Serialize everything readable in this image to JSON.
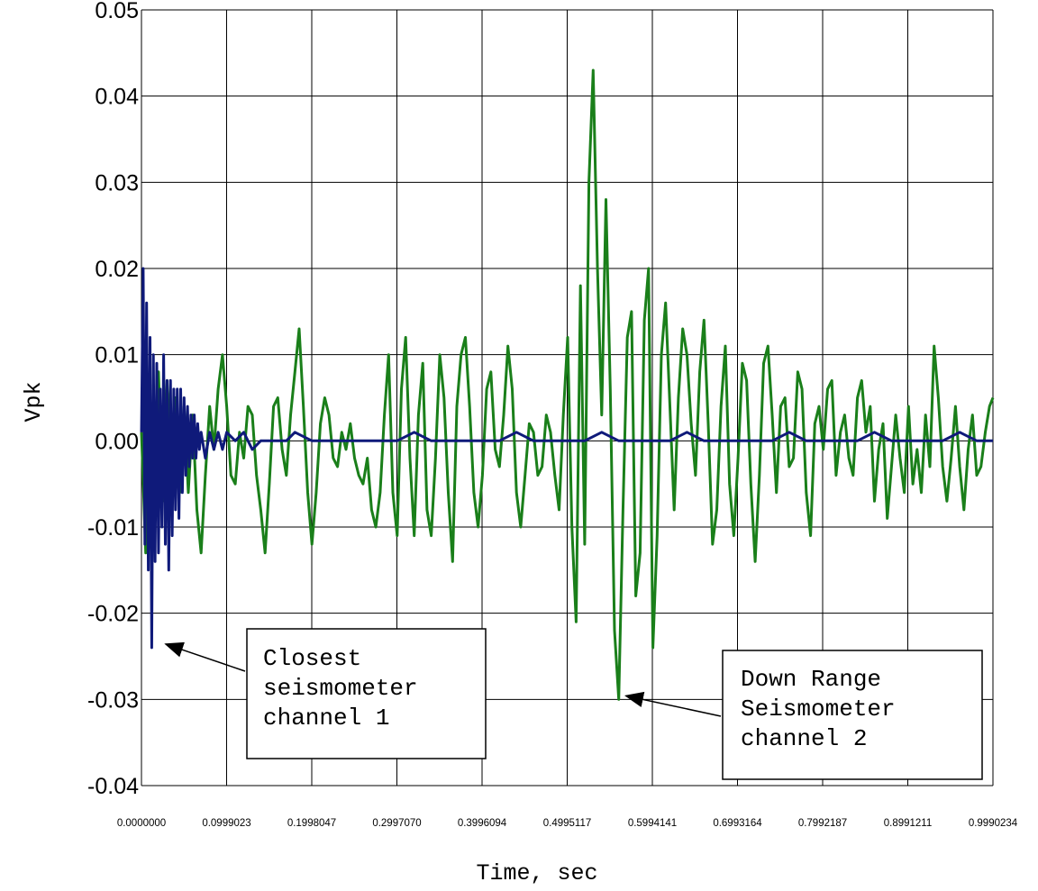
{
  "chart_data": {
    "type": "line",
    "title": "",
    "xlabel": "Time, sec",
    "ylabel": "Vpk",
    "xlim": [
      0.0,
      0.9990234
    ],
    "ylim": [
      -0.04,
      0.05
    ],
    "grid": true,
    "x_tick_labels": [
      "0.0000000",
      "0.0999023",
      "0.1998047",
      "0.2997070",
      "0.3996094",
      "0.4995117",
      "0.5994141",
      "0.6993164",
      "0.7992187",
      "0.8991211",
      "0.9990234"
    ],
    "y_tick_labels": [
      "0.05",
      "0.04",
      "0.03",
      "0.02",
      "0.01",
      "0.00",
      "-0.01",
      "-0.02",
      "-0.03",
      "-0.04"
    ],
    "y_tick_values": [
      0.05,
      0.04,
      0.03,
      0.02,
      0.01,
      0.0,
      -0.01,
      -0.02,
      -0.03,
      -0.04
    ],
    "series": [
      {
        "color": "#1a7f1a",
        "points": [
          [
            0.0,
            0.001
          ],
          [
            0.005,
            -0.013
          ],
          [
            0.01,
            0.004
          ],
          [
            0.015,
            -0.012
          ],
          [
            0.02,
            0.008
          ],
          [
            0.025,
            -0.007
          ],
          [
            0.03,
            0.007
          ],
          [
            0.035,
            -0.005
          ],
          [
            0.04,
            0.005
          ],
          [
            0.045,
            -0.006
          ],
          [
            0.05,
            0.004
          ],
          [
            0.055,
            -0.006
          ],
          [
            0.06,
            0.003
          ],
          [
            0.065,
            -0.008
          ],
          [
            0.07,
            -0.013
          ],
          [
            0.075,
            -0.004
          ],
          [
            0.08,
            0.004
          ],
          [
            0.085,
            -0.001
          ],
          [
            0.09,
            0.006
          ],
          [
            0.095,
            0.01
          ],
          [
            0.1,
            0.004
          ],
          [
            0.105,
            -0.004
          ],
          [
            0.11,
            -0.005
          ],
          [
            0.115,
            0.001
          ],
          [
            0.12,
            -0.002
          ],
          [
            0.125,
            0.004
          ],
          [
            0.13,
            0.003
          ],
          [
            0.135,
            -0.004
          ],
          [
            0.14,
            -0.008
          ],
          [
            0.145,
            -0.013
          ],
          [
            0.15,
            -0.005
          ],
          [
            0.155,
            0.004
          ],
          [
            0.16,
            0.005
          ],
          [
            0.165,
            -0.001
          ],
          [
            0.17,
            -0.004
          ],
          [
            0.175,
            0.003
          ],
          [
            0.18,
            0.008
          ],
          [
            0.185,
            0.013
          ],
          [
            0.19,
            0.004
          ],
          [
            0.195,
            -0.006
          ],
          [
            0.2,
            -0.012
          ],
          [
            0.205,
            -0.006
          ],
          [
            0.21,
            0.002
          ],
          [
            0.215,
            0.005
          ],
          [
            0.22,
            0.003
          ],
          [
            0.225,
            -0.002
          ],
          [
            0.23,
            -0.003
          ],
          [
            0.235,
            0.001
          ],
          [
            0.24,
            -0.001
          ],
          [
            0.245,
            0.002
          ],
          [
            0.25,
            -0.002
          ],
          [
            0.255,
            -0.004
          ],
          [
            0.26,
            -0.005
          ],
          [
            0.265,
            -0.002
          ],
          [
            0.27,
            -0.008
          ],
          [
            0.275,
            -0.01
          ],
          [
            0.28,
            -0.006
          ],
          [
            0.285,
            0.003
          ],
          [
            0.29,
            0.01
          ],
          [
            0.295,
            -0.006
          ],
          [
            0.3,
            -0.011
          ],
          [
            0.305,
            0.006
          ],
          [
            0.31,
            0.012
          ],
          [
            0.315,
            -0.002
          ],
          [
            0.32,
            -0.011
          ],
          [
            0.325,
            0.003
          ],
          [
            0.33,
            0.009
          ],
          [
            0.335,
            -0.008
          ],
          [
            0.34,
            -0.011
          ],
          [
            0.345,
            -0.002
          ],
          [
            0.35,
            0.01
          ],
          [
            0.355,
            0.005
          ],
          [
            0.36,
            -0.006
          ],
          [
            0.365,
            -0.014
          ],
          [
            0.37,
            0.004
          ],
          [
            0.375,
            0.01
          ],
          [
            0.38,
            0.012
          ],
          [
            0.385,
            0.004
          ],
          [
            0.39,
            -0.006
          ],
          [
            0.395,
            -0.01
          ],
          [
            0.4,
            -0.004
          ],
          [
            0.405,
            0.006
          ],
          [
            0.41,
            0.008
          ],
          [
            0.415,
            -0.001
          ],
          [
            0.42,
            -0.003
          ],
          [
            0.425,
            0.003
          ],
          [
            0.43,
            0.011
          ],
          [
            0.435,
            0.006
          ],
          [
            0.44,
            -0.006
          ],
          [
            0.445,
            -0.01
          ],
          [
            0.45,
            -0.004
          ],
          [
            0.455,
            0.002
          ],
          [
            0.46,
            0.001
          ],
          [
            0.465,
            -0.004
          ],
          [
            0.47,
            -0.003
          ],
          [
            0.475,
            0.003
          ],
          [
            0.48,
            0.001
          ],
          [
            0.485,
            -0.004
          ],
          [
            0.49,
            -0.008
          ],
          [
            0.495,
            0.003
          ],
          [
            0.5,
            0.012
          ],
          [
            0.505,
            -0.01
          ],
          [
            0.51,
            -0.021
          ],
          [
            0.515,
            0.018
          ],
          [
            0.52,
            -0.012
          ],
          [
            0.525,
            0.03
          ],
          [
            0.53,
            0.043
          ],
          [
            0.535,
            0.02
          ],
          [
            0.54,
            0.003
          ],
          [
            0.545,
            0.028
          ],
          [
            0.55,
            0.006
          ],
          [
            0.555,
            -0.022
          ],
          [
            0.56,
            -0.03
          ],
          [
            0.565,
            -0.008
          ],
          [
            0.57,
            0.012
          ],
          [
            0.575,
            0.015
          ],
          [
            0.58,
            -0.018
          ],
          [
            0.585,
            -0.013
          ],
          [
            0.59,
            0.014
          ],
          [
            0.595,
            0.02
          ],
          [
            0.6,
            -0.024
          ],
          [
            0.605,
            -0.011
          ],
          [
            0.61,
            0.01
          ],
          [
            0.615,
            0.016
          ],
          [
            0.62,
            0.004
          ],
          [
            0.625,
            -0.008
          ],
          [
            0.63,
            0.005
          ],
          [
            0.635,
            0.013
          ],
          [
            0.64,
            0.01
          ],
          [
            0.645,
            0.002
          ],
          [
            0.65,
            -0.004
          ],
          [
            0.655,
            0.008
          ],
          [
            0.66,
            0.014
          ],
          [
            0.665,
            0.002
          ],
          [
            0.67,
            -0.012
          ],
          [
            0.675,
            -0.008
          ],
          [
            0.68,
            0.004
          ],
          [
            0.685,
            0.011
          ],
          [
            0.69,
            -0.005
          ],
          [
            0.695,
            -0.011
          ],
          [
            0.7,
            -0.002
          ],
          [
            0.705,
            0.009
          ],
          [
            0.71,
            0.007
          ],
          [
            0.715,
            -0.005
          ],
          [
            0.72,
            -0.014
          ],
          [
            0.725,
            -0.004
          ],
          [
            0.73,
            0.009
          ],
          [
            0.735,
            0.011
          ],
          [
            0.74,
            0.003
          ],
          [
            0.745,
            -0.006
          ],
          [
            0.75,
            0.004
          ],
          [
            0.755,
            0.005
          ],
          [
            0.76,
            -0.003
          ],
          [
            0.765,
            -0.002
          ],
          [
            0.77,
            0.008
          ],
          [
            0.775,
            0.006
          ],
          [
            0.78,
            -0.006
          ],
          [
            0.785,
            -0.011
          ],
          [
            0.79,
            0.002
          ],
          [
            0.795,
            0.004
          ],
          [
            0.8,
            -0.001
          ],
          [
            0.805,
            0.006
          ],
          [
            0.81,
            0.007
          ],
          [
            0.815,
            -0.004
          ],
          [
            0.82,
            0.001
          ],
          [
            0.825,
            0.003
          ],
          [
            0.83,
            -0.002
          ],
          [
            0.835,
            -0.004
          ],
          [
            0.84,
            0.005
          ],
          [
            0.845,
            0.007
          ],
          [
            0.85,
            0.001
          ],
          [
            0.855,
            0.004
          ],
          [
            0.86,
            -0.007
          ],
          [
            0.865,
            -0.001
          ],
          [
            0.87,
            0.002
          ],
          [
            0.875,
            -0.009
          ],
          [
            0.88,
            -0.003
          ],
          [
            0.885,
            0.003
          ],
          [
            0.89,
            -0.002
          ],
          [
            0.895,
            -0.006
          ],
          [
            0.9,
            0.004
          ],
          [
            0.905,
            -0.005
          ],
          [
            0.91,
            -0.001
          ],
          [
            0.915,
            -0.006
          ],
          [
            0.92,
            0.003
          ],
          [
            0.925,
            -0.003
          ],
          [
            0.93,
            0.011
          ],
          [
            0.935,
            0.005
          ],
          [
            0.94,
            -0.003
          ],
          [
            0.945,
            -0.007
          ],
          [
            0.95,
            -0.002
          ],
          [
            0.955,
            0.004
          ],
          [
            0.96,
            -0.003
          ],
          [
            0.965,
            -0.008
          ],
          [
            0.97,
            -0.001
          ],
          [
            0.975,
            0.003
          ],
          [
            0.98,
            -0.004
          ],
          [
            0.985,
            -0.003
          ],
          [
            0.99,
            0.001
          ],
          [
            0.995,
            0.004
          ],
          [
            0.999,
            0.005
          ]
        ]
      },
      {
        "color": "#0f1a7a",
        "points": [
          [
            0.0,
            0.001
          ],
          [
            0.002,
            0.02
          ],
          [
            0.004,
            -0.012
          ],
          [
            0.006,
            0.016
          ],
          [
            0.008,
            -0.015
          ],
          [
            0.01,
            0.012
          ],
          [
            0.012,
            -0.024
          ],
          [
            0.014,
            0.01
          ],
          [
            0.016,
            -0.014
          ],
          [
            0.018,
            0.009
          ],
          [
            0.02,
            -0.013
          ],
          [
            0.022,
            0.006
          ],
          [
            0.024,
            -0.01
          ],
          [
            0.026,
            0.01
          ],
          [
            0.028,
            -0.012
          ],
          [
            0.03,
            0.007
          ],
          [
            0.032,
            -0.015
          ],
          [
            0.034,
            0.007
          ],
          [
            0.036,
            -0.011
          ],
          [
            0.038,
            0.006
          ],
          [
            0.04,
            -0.008
          ],
          [
            0.042,
            0.006
          ],
          [
            0.044,
            -0.009
          ],
          [
            0.046,
            0.006
          ],
          [
            0.048,
            -0.006
          ],
          [
            0.05,
            0.005
          ],
          [
            0.052,
            -0.004
          ],
          [
            0.054,
            0.004
          ],
          [
            0.056,
            -0.003
          ],
          [
            0.058,
            0.003
          ],
          [
            0.06,
            -0.002
          ],
          [
            0.062,
            0.003
          ],
          [
            0.064,
            -0.002
          ],
          [
            0.066,
            0.002
          ],
          [
            0.068,
            -0.001
          ],
          [
            0.07,
            0.001
          ],
          [
            0.075,
            -0.002
          ],
          [
            0.08,
            0.001
          ],
          [
            0.085,
            -0.001
          ],
          [
            0.09,
            0.001
          ],
          [
            0.095,
            -0.001
          ],
          [
            0.1,
            0.001
          ],
          [
            0.11,
            0.0
          ],
          [
            0.12,
            0.001
          ],
          [
            0.13,
            -0.001
          ],
          [
            0.14,
            0.0
          ],
          [
            0.15,
            0.0
          ],
          [
            0.16,
            0.0
          ],
          [
            0.17,
            0.0
          ],
          [
            0.18,
            0.001
          ],
          [
            0.2,
            0.0
          ],
          [
            0.22,
            0.0
          ],
          [
            0.24,
            0.0
          ],
          [
            0.26,
            0.0
          ],
          [
            0.28,
            0.0
          ],
          [
            0.3,
            0.0
          ],
          [
            0.32,
            0.001
          ],
          [
            0.34,
            0.0
          ],
          [
            0.36,
            0.0
          ],
          [
            0.38,
            0.0
          ],
          [
            0.4,
            0.0
          ],
          [
            0.42,
            0.0
          ],
          [
            0.44,
            0.001
          ],
          [
            0.46,
            0.0
          ],
          [
            0.48,
            0.0
          ],
          [
            0.5,
            0.0
          ],
          [
            0.52,
            0.0
          ],
          [
            0.54,
            0.001
          ],
          [
            0.56,
            0.0
          ],
          [
            0.58,
            0.0
          ],
          [
            0.6,
            0.0
          ],
          [
            0.62,
            0.0
          ],
          [
            0.64,
            0.001
          ],
          [
            0.66,
            0.0
          ],
          [
            0.68,
            0.0
          ],
          [
            0.7,
            0.0
          ],
          [
            0.72,
            0.0
          ],
          [
            0.74,
            0.0
          ],
          [
            0.76,
            0.001
          ],
          [
            0.78,
            0.0
          ],
          [
            0.8,
            0.0
          ],
          [
            0.82,
            0.0
          ],
          [
            0.84,
            0.0
          ],
          [
            0.86,
            0.001
          ],
          [
            0.88,
            0.0
          ],
          [
            0.9,
            0.0
          ],
          [
            0.92,
            0.0
          ],
          [
            0.94,
            0.0
          ],
          [
            0.96,
            0.001
          ],
          [
            0.98,
            0.0
          ],
          [
            0.999,
            0.0
          ]
        ]
      }
    ],
    "annotations": [
      {
        "lines": [
          "Closest",
          "seismometer",
          "channel 1"
        ],
        "target": [
          0.02,
          -0.024
        ]
      },
      {
        "lines": [
          "Down Range",
          "Seismometer",
          "channel 2"
        ],
        "target": [
          0.56,
          -0.03
        ]
      }
    ]
  }
}
